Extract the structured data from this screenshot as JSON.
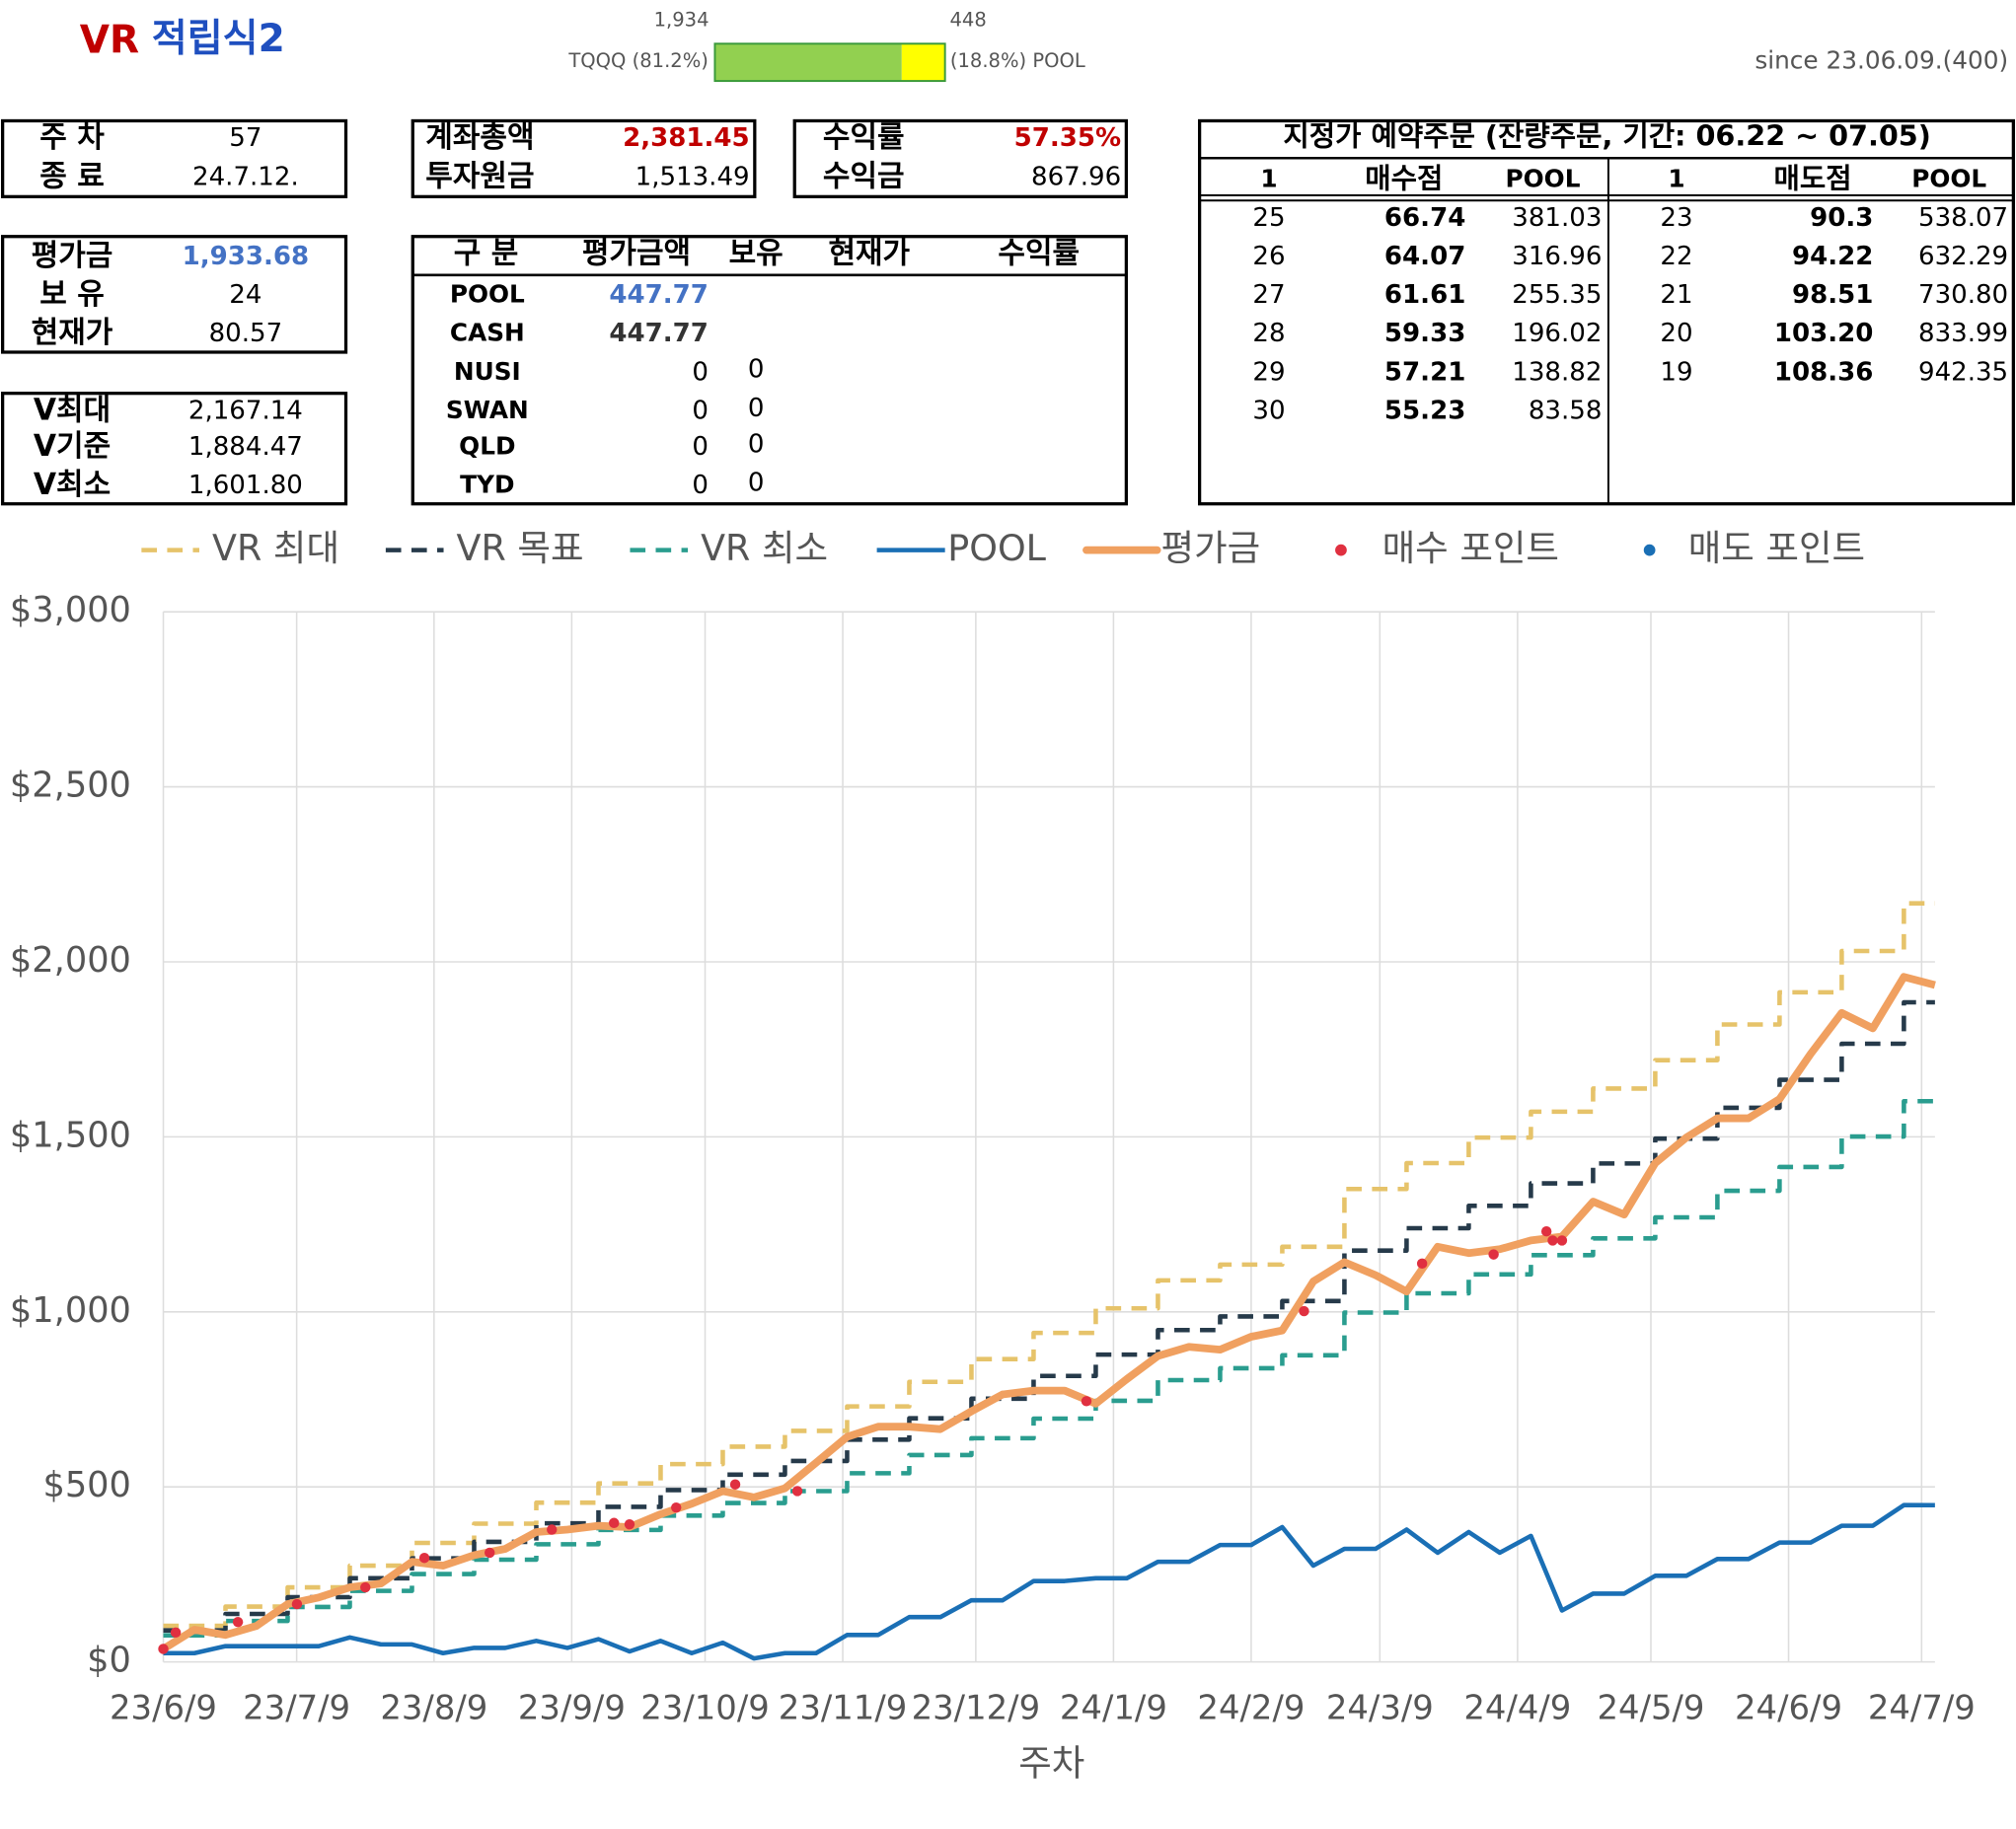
{
  "header": {
    "title_prefix": "VR",
    "title": "적립식2",
    "allocation": {
      "values": [
        1934,
        448
      ],
      "labels": [
        "1,934",
        "448"
      ],
      "names": [
        "TQQQ (81.2%)",
        "(18.8%) POOL"
      ],
      "colors": [
        "#92d050",
        "#ffff00"
      ]
    },
    "since": "since 23.06.09.(400)"
  },
  "summary": [
    [
      [
        "주 차",
        "57"
      ],
      [
        "종 료",
        "24.7.12."
      ]
    ],
    [
      [
        "계좌총액",
        "2,381.45"
      ],
      [
        "투자원금",
        "1,513.49"
      ]
    ],
    [
      [
        "수익률",
        "57.35%"
      ],
      [
        "수익금",
        "867.96"
      ]
    ],
    [
      [
        "평가금",
        "1,933.68"
      ],
      [
        "보 유",
        "24"
      ],
      [
        "현재가",
        "80.57"
      ]
    ],
    [
      [
        "V최대",
        "2,167.14"
      ],
      [
        "V기준",
        "1,884.47"
      ],
      [
        "V최소",
        "1,601.80"
      ]
    ]
  ],
  "holdings": {
    "columns": [
      "구 분",
      "평가금액",
      "보유",
      "현재가",
      "수익률"
    ],
    "rows": [
      [
        "POOL",
        "447.77"
      ],
      [
        "CASH",
        "447.77"
      ],
      [
        "NUSI",
        "0",
        "0"
      ],
      [
        "SWAN",
        "0",
        "0"
      ],
      [
        "QLD",
        "0",
        "0"
      ],
      [
        "TYD",
        "0",
        "0"
      ]
    ]
  },
  "orders": {
    "title": "지정가 예약주문 (잔량주문, 기간: 06.22 ~ 07.05)",
    "columns": [
      "1",
      "매수점",
      "POOL",
      "1",
      "매도점",
      "POOL"
    ],
    "buy": [
      [
        "25",
        "66.74",
        "381.03"
      ],
      [
        "26",
        "64.07",
        "316.96"
      ],
      [
        "27",
        "61.61",
        "255.35"
      ],
      [
        "28",
        "59.33",
        "196.02"
      ],
      [
        "29",
        "57.21",
        "138.82"
      ],
      [
        "30",
        "55.23",
        "83.58"
      ]
    ],
    "sell": [
      [
        "23",
        "90.3",
        "538.07"
      ],
      [
        "22",
        "94.22",
        "632.29"
      ],
      [
        "21",
        "98.51",
        "730.80"
      ],
      [
        "20",
        "103.20",
        "833.99"
      ],
      [
        "19",
        "108.36",
        "942.35"
      ]
    ]
  },
  "chart_data": {
    "type": "line",
    "x_label": "주차",
    "grid": true,
    "legend": "top",
    "xlim": [
      0,
      57
    ],
    "xticks": [
      {
        "value": 0,
        "label": "23/6/9"
      },
      {
        "value": 4.29,
        "label": "23/7/9"
      },
      {
        "value": 8.71,
        "label": "23/8/9"
      },
      {
        "value": 13.14,
        "label": "23/9/9"
      },
      {
        "value": 17.43,
        "label": "23/10/9"
      },
      {
        "value": 21.86,
        "label": "23/11/9"
      },
      {
        "value": 26.14,
        "label": "23/12/9"
      },
      {
        "value": 30.57,
        "label": "24/1/9"
      },
      {
        "value": 35,
        "label": "24/2/9"
      },
      {
        "value": 39.14,
        "label": "24/3/9"
      },
      {
        "value": 43.57,
        "label": "24/4/9"
      },
      {
        "value": 47.86,
        "label": "24/5/9"
      },
      {
        "value": 52.29,
        "label": "24/6/9"
      },
      {
        "value": 56.57,
        "label": "24/7/9"
      }
    ],
    "ylim": [
      0,
      3000
    ],
    "yticks": [
      {
        "value": 0,
        "label": "$0"
      },
      {
        "value": 500,
        "label": "$500"
      },
      {
        "value": 1000,
        "label": "$1,000"
      },
      {
        "value": 1500,
        "label": "$1,500"
      },
      {
        "value": 2000,
        "label": "$2,000"
      },
      {
        "value": 2500,
        "label": "$2,500"
      },
      {
        "value": 3000,
        "label": "$3,000"
      }
    ],
    "x": [
      0,
      1,
      2,
      3,
      4,
      5,
      6,
      7,
      8,
      9,
      10,
      11,
      12,
      13,
      14,
      15,
      16,
      17,
      18,
      19,
      20,
      21,
      22,
      23,
      24,
      25,
      26,
      27,
      28,
      29,
      30,
      31,
      32,
      33,
      34,
      35,
      36,
      37,
      38,
      39,
      40,
      41,
      42,
      43,
      44,
      45,
      46,
      47,
      48,
      49,
      50,
      51,
      52,
      53,
      54,
      55,
      56,
      57
    ],
    "series": [
      {
        "name": "VR 최대",
        "color": "#e6c36a",
        "line": "dashed",
        "step": true,
        "values": [
          103,
          103,
          158,
          158,
          213,
          213,
          275,
          275,
          340,
          340,
          395,
          395,
          455,
          455,
          510,
          510,
          565,
          565,
          615,
          615,
          660,
          660,
          730,
          730,
          800,
          800,
          865,
          865,
          940,
          940,
          1010,
          1010,
          1090,
          1090,
          1135,
          1135,
          1186,
          1186,
          1351,
          1351,
          1425,
          1425,
          1498,
          1498,
          1572,
          1572,
          1638,
          1638,
          1719,
          1719,
          1821,
          1821,
          1913,
          1913,
          2031,
          2031,
          2167.14,
          2167.14
        ]
      },
      {
        "name": "VR 목표",
        "color": "#263a4a",
        "line": "dashed",
        "step": true,
        "values": [
          90,
          90,
          137,
          137,
          185,
          185,
          239,
          239,
          296,
          296,
          343,
          343,
          396,
          396,
          443,
          443,
          491,
          491,
          535,
          535,
          574,
          574,
          635,
          635,
          696,
          696,
          752,
          752,
          817,
          817,
          878,
          878,
          948,
          948,
          987,
          987,
          1031,
          1031,
          1175,
          1175,
          1239,
          1239,
          1303,
          1303,
          1367,
          1367,
          1424,
          1424,
          1495,
          1495,
          1583,
          1583,
          1663,
          1663,
          1766,
          1766,
          1884.47,
          1884.47
        ]
      },
      {
        "name": "VR 최소",
        "color": "#2a9d8f",
        "line": "dashed",
        "step": true,
        "values": [
          76,
          76,
          117,
          117,
          157,
          157,
          203,
          203,
          251,
          251,
          292,
          292,
          336,
          336,
          377,
          377,
          418,
          418,
          454,
          454,
          488,
          488,
          539,
          539,
          591,
          591,
          639,
          639,
          695,
          695,
          746,
          746,
          805,
          805,
          839,
          839,
          876,
          876,
          998,
          998,
          1053,
          1053,
          1107,
          1107,
          1162,
          1162,
          1210,
          1210,
          1270,
          1270,
          1346,
          1346,
          1414,
          1414,
          1501,
          1501,
          1601.8,
          1601.8
        ]
      },
      {
        "name": "POOL",
        "color": "#1a6fb5",
        "line": "solid",
        "step": false,
        "values": [
          25,
          25,
          45,
          45,
          45,
          45,
          70,
          50,
          50,
          25,
          40,
          40,
          60,
          40,
          65,
          30,
          60,
          25,
          55,
          10,
          25,
          25,
          77,
          77,
          128,
          128,
          176,
          176,
          231,
          231,
          239,
          239,
          286,
          286,
          334,
          334,
          385,
          275,
          323,
          323,
          378,
          312,
          371,
          312,
          360,
          147,
          195,
          195,
          246,
          246,
          294,
          294,
          341,
          341,
          389,
          389,
          448,
          447.77
        ]
      },
      {
        "name": "평가금",
        "color": "#f0a060",
        "line": "thick",
        "step": false,
        "values": [
          37,
          92,
          77,
          103,
          165,
          184,
          213,
          224,
          286,
          275,
          305,
          323,
          371,
          378,
          389,
          385,
          422,
          452,
          488,
          470,
          496,
          569,
          643,
          672,
          672,
          665,
          716,
          764,
          775,
          775,
          738,
          808,
          874,
          900,
          892,
          929,
          947,
          1087,
          1142,
          1105,
          1058,
          1186,
          1168,
          1179,
          1204,
          1215,
          1315,
          1278,
          1425,
          1498,
          1553,
          1553,
          1608,
          1737,
          1854,
          1810,
          1957,
          1933.68
        ]
      },
      {
        "name": "매수 포인트",
        "color": "#e03040",
        "line": "none",
        "marker": "dot",
        "x": [
          0,
          0.4,
          2.4,
          4.3,
          6.5,
          8.4,
          10.5,
          12.5,
          14.5,
          15,
          16.5,
          18.4,
          20.4,
          29.7,
          36.7,
          40.5,
          42.8,
          44.5,
          44.7,
          45
        ],
        "values": [
          37,
          84,
          114,
          165,
          213,
          297,
          312,
          378,
          397,
          393,
          441,
          507,
          488,
          745,
          1002,
          1138,
          1164,
          1230,
          1204,
          1204
        ]
      },
      {
        "name": "매도 포인트",
        "color": "#1a6fb5",
        "line": "none",
        "marker": "dot",
        "x": [],
        "values": []
      }
    ]
  }
}
